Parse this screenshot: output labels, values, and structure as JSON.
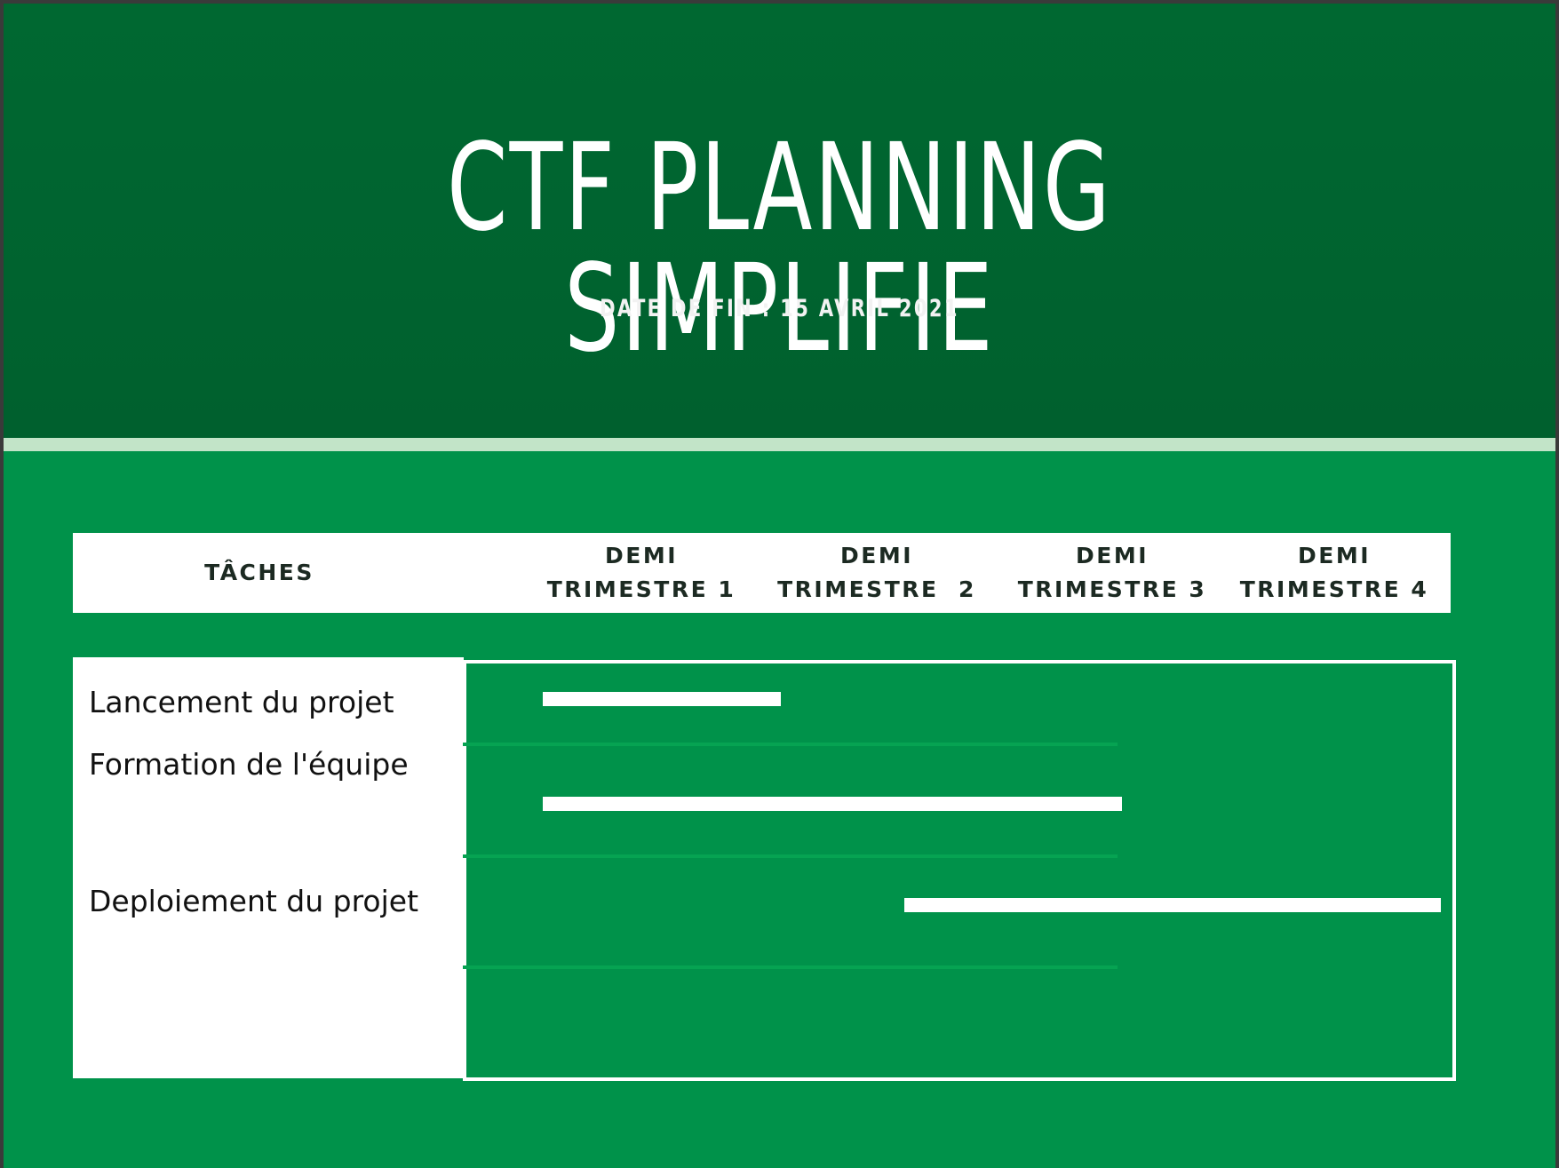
{
  "header": {
    "title": "CTF PLANNING SIMPLIFIE",
    "subtitle": "DATE DE FIN : 15 AVRIL 2021"
  },
  "columns": {
    "tasks_label": "TÂCHES",
    "periods": [
      {
        "line1": "DEMI",
        "line2": "TRIMESTRE 1"
      },
      {
        "line1": "DEMI",
        "line2": "TRIMESTRE  2"
      },
      {
        "line1": "DEMI",
        "line2": "TRIMESTRE 3"
      },
      {
        "line1": "DEMI",
        "line2": "TRIMESTRE 4"
      }
    ]
  },
  "tasks": [
    {
      "name": "Lancement du projet",
      "start": 0.35,
      "end": 1.4
    },
    {
      "name": "Formation de l'équipe",
      "start": 0.35,
      "end": 2.9
    },
    {
      "name": "Deploiement du projet",
      "start": 1.94,
      "end": 4.3
    }
  ],
  "colors": {
    "header_bg": "#006831",
    "body_bg": "#00924a",
    "divider": "#c2e4c8",
    "bar": "#ffffff",
    "text_dark": "#1c2a22"
  }
}
